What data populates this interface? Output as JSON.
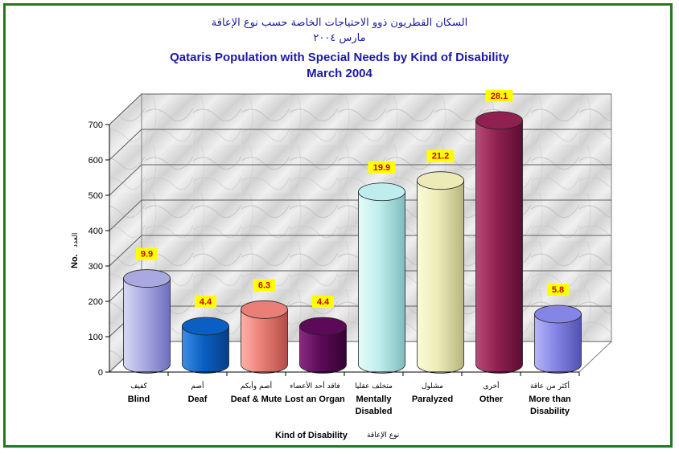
{
  "chart_data": {
    "type": "bar",
    "title_ar": "السكان القطريون ذوو الاحتياجات الخاصة حسب نوع الإعاقة",
    "subtitle_ar": "مارس ٢٠٠٤",
    "title": "Qataris Population with Special Needs by Kind of Disability",
    "subtitle": "March 2004",
    "xlabel": "Kind of Disability",
    "xlabel_ar": "نوع الإعاقة",
    "ylabel": "No.",
    "ylabel_ar": "العدد",
    "ylim": [
      0,
      700
    ],
    "yticks": [
      "0",
      "100",
      "200",
      "300",
      "400",
      "500",
      "600",
      "700"
    ],
    "categories": [
      {
        "ar": "كفيف",
        "en": [
          "Blind"
        ]
      },
      {
        "ar": "أصم",
        "en": [
          "Deaf"
        ]
      },
      {
        "ar": "أصم وأبكم",
        "en": [
          "Deaf & Mute"
        ]
      },
      {
        "ar": "فاقد أحد الأعضاء",
        "en": [
          "Lost an Organ"
        ]
      },
      {
        "ar": "متخلف عقليا",
        "en": [
          "Mentally",
          "Disabled"
        ]
      },
      {
        "ar": "مشلول",
        "en": [
          "Paralyzed"
        ]
      },
      {
        "ar": "أخرى",
        "en": [
          "Other"
        ]
      },
      {
        "ar": "أكثر من عاقة",
        "en": [
          "More than",
          "Disability"
        ]
      }
    ],
    "values": [
      243,
      108,
      155,
      108,
      488,
      520,
      690,
      142
    ],
    "data_labels": [
      "9.9",
      "4.4",
      "6.3",
      "4.4",
      "19.9",
      "21.2",
      "28.1",
      "5.8"
    ],
    "colors": [
      {
        "light": "#d8d8f4",
        "mid": "#a9a9e0",
        "dark": "#6e6ebf"
      },
      {
        "light": "#3d8fe6",
        "mid": "#0b5fc2",
        "dark": "#063f86"
      },
      {
        "light": "#ffb0a8",
        "mid": "#e97f77",
        "dark": "#b34c45"
      },
      {
        "light": "#8a2a84",
        "mid": "#5c0a57",
        "dark": "#350432"
      },
      {
        "light": "#e6fbfb",
        "mid": "#bfecec",
        "dark": "#7fbcbc"
      },
      {
        "light": "#fbfbd9",
        "mid": "#ecebb8",
        "dark": "#b7b57b"
      },
      {
        "light": "#b84d78",
        "mid": "#8f2050",
        "dark": "#5c0e32"
      },
      {
        "light": "#b5b5f6",
        "mid": "#8585e6",
        "dark": "#5252b0"
      }
    ],
    "grid": true,
    "legend": "none"
  }
}
